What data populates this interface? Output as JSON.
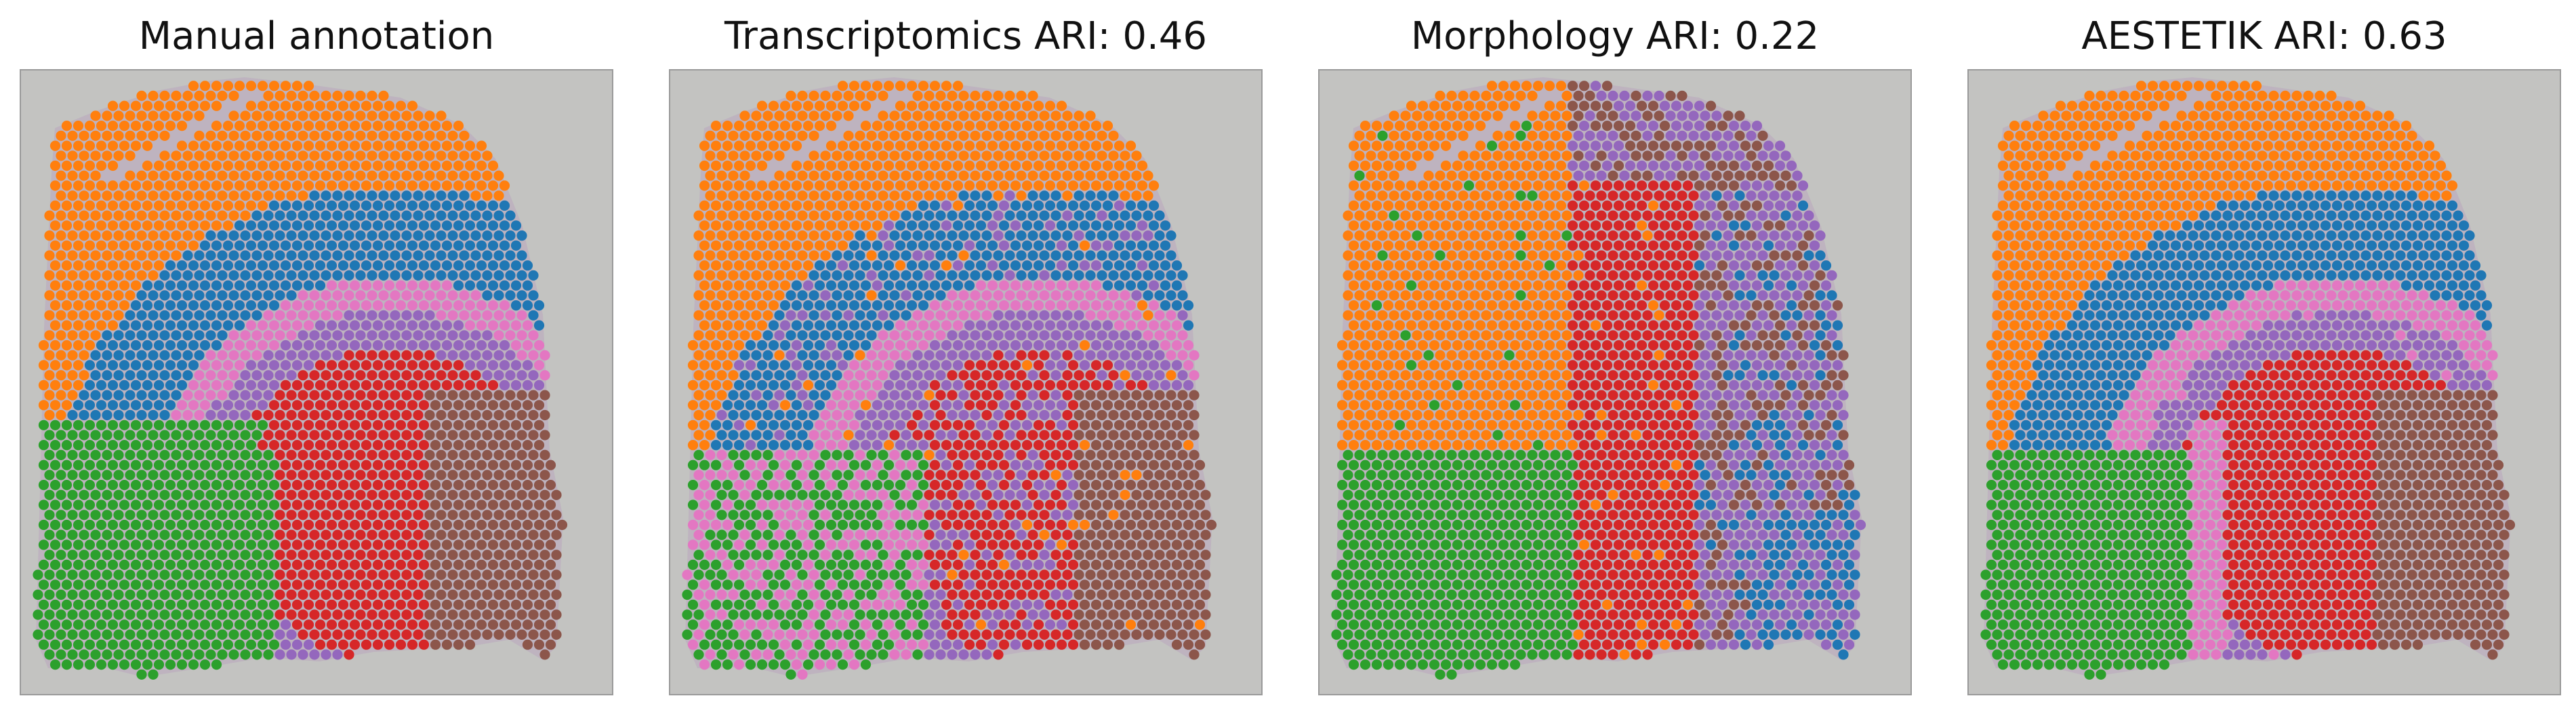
{
  "figure": {
    "panels": [
      {
        "id": "manual",
        "title": "Manual annotation",
        "type": "manual"
      },
      {
        "id": "transcriptomics",
        "title": "Transcriptomics ARI: 0.46",
        "type": "transcriptomics"
      },
      {
        "id": "morphology",
        "title": "Morphology ARI: 0.22",
        "type": "morphology"
      },
      {
        "id": "aestetik",
        "title": "AESTETIK ARI: 0.63",
        "type": "aestetik"
      }
    ]
  },
  "colors": {
    "background_tissue": "#c3c3c1",
    "tissue_shadow": "#b9a6be",
    "frame_border": "#9a9a9a",
    "cluster_orange": "#ff7f0e",
    "cluster_blue": "#1f77b4",
    "cluster_pink": "#e377c2",
    "cluster_purple": "#9467bd",
    "cluster_red": "#d62728",
    "cluster_green": "#2ca02c",
    "cluster_brown": "#8c564b"
  }
}
